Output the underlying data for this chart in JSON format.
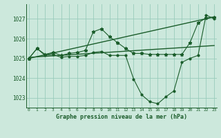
{
  "bg_color": "#cce8dc",
  "grid_color": "#99ccbb",
  "line_color": "#1a5c2a",
  "title": "Graphe pression niveau de la mer (hPa)",
  "ylim": [
    1022.5,
    1027.75
  ],
  "yticks": [
    1023,
    1024,
    1025,
    1026,
    1027
  ],
  "xticks": [
    0,
    1,
    2,
    3,
    4,
    5,
    6,
    7,
    8,
    9,
    10,
    11,
    12,
    13,
    14,
    15,
    16,
    17,
    18,
    19,
    20,
    21,
    22,
    23
  ],
  "series1": [
    1025.0,
    1025.5,
    1025.2,
    1025.3,
    1025.15,
    1025.25,
    1025.3,
    1025.4,
    1026.35,
    1026.5,
    1026.1,
    1025.8,
    1025.5,
    1025.25,
    1025.25,
    1025.2,
    1025.2,
    1025.2,
    1025.2,
    1025.2,
    1025.8,
    1026.8,
    1027.05,
    1027.1
  ],
  "series2_x": [
    0,
    1,
    2,
    3,
    4,
    5,
    6,
    7,
    8,
    9,
    10,
    11,
    12,
    13,
    14,
    15,
    16,
    17,
    18,
    19,
    20,
    21,
    22,
    23
  ],
  "series2": [
    1025.0,
    1025.5,
    1025.15,
    1025.2,
    1025.05,
    1025.1,
    1025.1,
    1025.15,
    1025.3,
    1025.35,
    1025.15,
    1025.15,
    1025.15,
    1023.95,
    1023.15,
    1022.8,
    1022.7,
    1023.05,
    1023.35,
    1024.8,
    1025.0,
    1025.15,
    1027.2,
    1027.0
  ],
  "trend1_x": [
    0,
    23
  ],
  "trend1_y": [
    1025.0,
    1027.1
  ],
  "trend2_x": [
    0,
    23
  ],
  "trend2_y": [
    1025.05,
    1025.65
  ]
}
